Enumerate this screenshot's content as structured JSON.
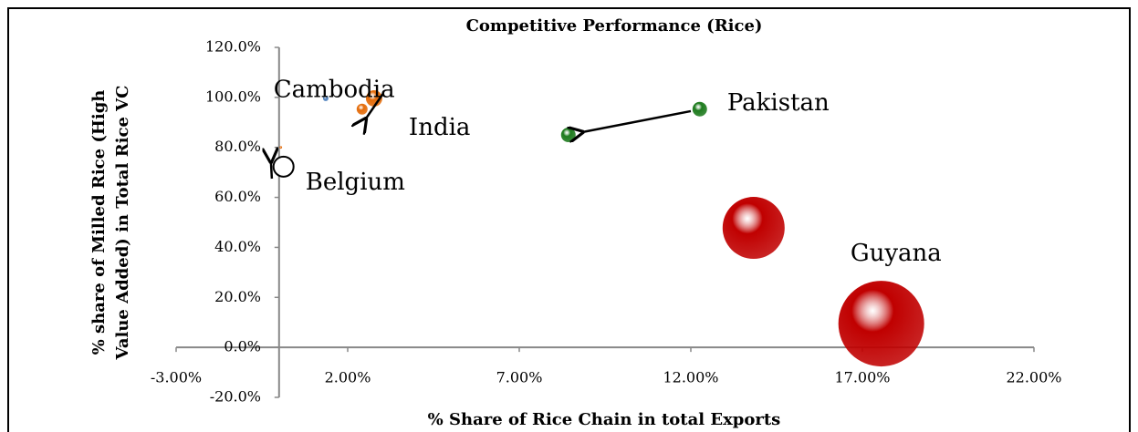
{
  "chart_data": {
    "type": "scatter",
    "title": "Competitive Performance (Rice)",
    "x_label": "% Share of Rice Chain in total Exports",
    "y_label": [
      "% share of Milled Rice (High",
      "Value Added) in Total Rice VC"
    ],
    "xlim": [
      -3,
      22
    ],
    "xticks": [
      {
        "value": -3,
        "label": "-3.00%"
      },
      {
        "value": 2,
        "label": "2.00%"
      },
      {
        "value": 7,
        "label": "7.00%"
      },
      {
        "value": 12,
        "label": "12.00%"
      },
      {
        "value": 17,
        "label": "17.00%"
      },
      {
        "value": 22,
        "label": "22.00%"
      }
    ],
    "ylim": [
      -20,
      120
    ],
    "yticks": [
      {
        "value": -20,
        "label": "-20.0%"
      },
      {
        "value": 0,
        "label": "0.0%"
      },
      {
        "value": 20,
        "label": "20.0%"
      },
      {
        "value": 40,
        "label": "40.0%"
      },
      {
        "value": 60,
        "label": "60.0%"
      },
      {
        "value": 80,
        "label": "80.0%"
      },
      {
        "value": 100,
        "label": "100.0%"
      },
      {
        "value": 120,
        "label": "120.0%"
      }
    ],
    "series": [
      {
        "color": "#4f81bd",
        "x": [
          1.36
        ],
        "values": [
          99.6
        ],
        "sizes": [
          9
        ]
      },
      {
        "color": "#e46c0a",
        "x": [
          2.77,
          2.42,
          0.05
        ],
        "values": [
          99.6,
          95.3,
          80
        ],
        "sizes": [
          81,
          36,
          2
        ]
      },
      {
        "color": "#1e7b1e",
        "x": [
          12.26,
          8.43
        ],
        "values": [
          95.3,
          85
        ],
        "sizes": [
          64,
          64
        ]
      },
      {
        "color": "#c00000",
        "x": [
          13.83,
          17.55
        ],
        "values": [
          47.8,
          9.5
        ],
        "sizes": [
          1156,
          2209
        ]
      },
      {
        "color": "#ffffff",
        "x": [
          0.13
        ],
        "values": [
          72.3
        ],
        "sizes": [
          121
        ]
      }
    ],
    "annotations": [
      {
        "text": "Cambodia",
        "x": -0.16,
        "y": 102.6
      },
      {
        "text": "India",
        "x": 3.78,
        "y": 87.6
      },
      {
        "text": "Pakistan",
        "x": 13.06,
        "y": 97.4
      },
      {
        "text": "Belgium",
        "x": 0.77,
        "y": 65.7
      },
      {
        "text": "Guyana",
        "x": 16.65,
        "y": 37.2
      }
    ],
    "arrows": [
      {
        "from": [
          12.0,
          94.5
        ],
        "to": [
          8.8,
          86.0
        ]
      },
      {
        "from": [
          3.03,
          101.5
        ],
        "to": [
          2.5,
          90.9
        ]
      },
      {
        "from": [
          -0.21,
          67.5
        ],
        "to": [
          -0.24,
          74.8
        ]
      }
    ]
  }
}
